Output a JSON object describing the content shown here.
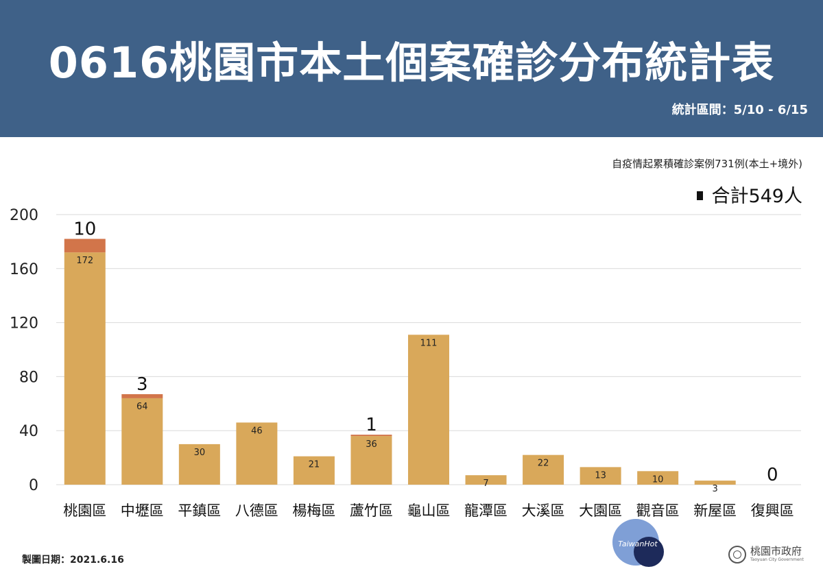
{
  "header": {
    "title": "0616桃園市本土個案確診分布統計表",
    "period": "統計區間：5/10 - 6/15"
  },
  "cumulative_note": "自疫情起累積確診案例731例(本土+境外)",
  "total_label": "合計549人",
  "footer": {
    "date": "製圖日期：2021.6.16",
    "watermark": "TaiwanHot",
    "logo_cn": "桃園市政府",
    "logo_en": "Taoyuan City Government"
  },
  "colors": {
    "header_bg": "#3f6188",
    "base_bar": "#d9a85a",
    "added_bar": "#d2754a",
    "grid": "#d9d9d9"
  },
  "chart_data": {
    "type": "bar",
    "stacked": true,
    "categories": [
      "桃園區",
      "中壢區",
      "平鎮區",
      "八德區",
      "楊梅區",
      "蘆竹區",
      "龜山區",
      "龍潭區",
      "大溪區",
      "大園區",
      "觀音區",
      "新屋區",
      "復興區"
    ],
    "series": [
      {
        "values": [
          172,
          64,
          30,
          46,
          21,
          36,
          111,
          7,
          22,
          13,
          10,
          3,
          0
        ],
        "color": "#d9a85a"
      },
      {
        "values": [
          10,
          3,
          0,
          0,
          0,
          1,
          0,
          0,
          0,
          0,
          0,
          0,
          0
        ],
        "color": "#d2754a"
      }
    ],
    "top_labels": [
      "10",
      "3",
      "",
      "",
      "",
      "1",
      "",
      "",
      "",
      "",
      "",
      "",
      "0"
    ],
    "ylim": [
      0,
      200
    ],
    "yticks": [
      0,
      40,
      80,
      120,
      160,
      200
    ],
    "grid": true
  }
}
